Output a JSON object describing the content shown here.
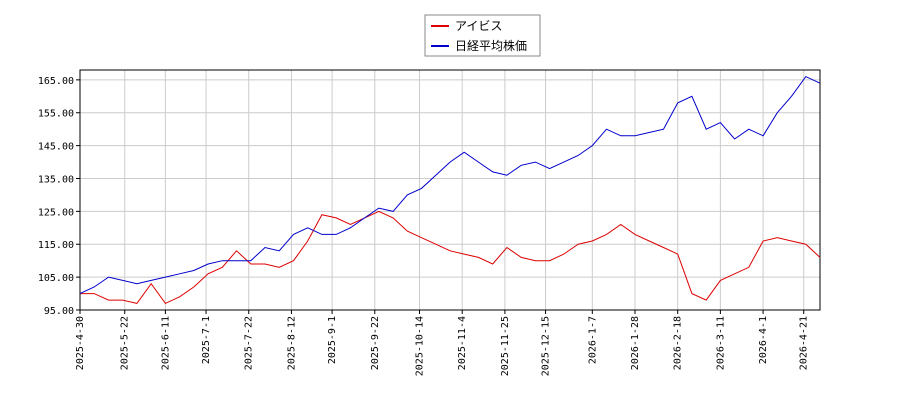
{
  "chart_data": {
    "type": "line",
    "x": [
      "2025-04-30",
      "2025-05-07",
      "2025-05-14",
      "2025-05-21",
      "2025-05-28",
      "2025-06-04",
      "2025-06-11",
      "2025-06-18",
      "2025-06-25",
      "2025-07-02",
      "2025-07-09",
      "2025-07-16",
      "2025-07-23",
      "2025-07-30",
      "2025-08-06",
      "2025-08-13",
      "2025-08-20",
      "2025-08-27",
      "2025-09-03",
      "2025-09-10",
      "2025-09-17",
      "2025-09-24",
      "2025-10-01",
      "2025-10-08",
      "2025-10-15",
      "2025-10-22",
      "2025-10-29",
      "2025-11-05",
      "2025-11-12",
      "2025-11-19",
      "2025-11-26",
      "2025-12-03",
      "2025-12-10",
      "2025-12-17",
      "2025-12-24",
      "2025-12-31",
      "2026-01-07",
      "2026-01-14",
      "2026-01-21",
      "2026-01-28",
      "2026-02-04",
      "2026-02-11",
      "2026-02-18",
      "2026-02-25",
      "2026-03-04",
      "2026-03-11",
      "2026-03-18",
      "2026-03-25",
      "2026-04-01",
      "2026-04-08",
      "2026-04-15",
      "2026-04-22",
      "2026-04-29"
    ],
    "series": [
      {
        "name": "アイビス",
        "color": "#dd0000",
        "values": [
          100,
          100,
          98,
          98,
          97,
          103,
          97,
          99,
          102,
          106,
          108,
          113,
          109,
          109,
          108,
          110,
          116,
          124,
          123,
          121,
          123,
          125,
          123,
          119,
          117,
          115,
          113,
          112,
          111,
          109,
          114,
          111,
          110,
          110,
          112,
          115,
          116,
          118,
          121,
          118,
          116,
          114,
          112,
          100,
          98,
          104,
          106,
          108,
          116,
          117,
          116,
          115,
          111
        ]
      },
      {
        "name": "日経平均株価",
        "color": "#0000cc",
        "values": [
          100,
          102,
          105,
          104,
          103,
          104,
          105,
          106,
          107,
          109,
          110,
          110,
          110,
          114,
          113,
          118,
          120,
          118,
          118,
          120,
          123,
          126,
          125,
          130,
          132,
          136,
          140,
          143,
          140,
          137,
          136,
          139,
          140,
          138,
          140,
          142,
          145,
          150,
          148,
          148,
          149,
          150,
          158,
          160,
          150,
          152,
          147,
          150,
          148,
          155,
          160,
          166,
          164
        ]
      }
    ],
    "xlim": [
      "2025-04-30",
      "2026-04-29"
    ],
    "xticks": [
      {
        "value": "2025-04-30",
        "label": "2025-4-30"
      },
      {
        "value": "2025-05-22",
        "label": "2025-5-22"
      },
      {
        "value": "2025-06-11",
        "label": "2025-6-11"
      },
      {
        "value": "2025-07-01",
        "label": "2025-7-1"
      },
      {
        "value": "2025-07-22",
        "label": "2025-7-22"
      },
      {
        "value": "2025-08-12",
        "label": "2025-8-12"
      },
      {
        "value": "2025-09-01",
        "label": "2025-9-1"
      },
      {
        "value": "2025-09-22",
        "label": "2025-9-22"
      },
      {
        "value": "2025-10-14",
        "label": "2025-10-14"
      },
      {
        "value": "2025-11-04",
        "label": "2025-11-4"
      },
      {
        "value": "2025-11-25",
        "label": "2025-11-25"
      },
      {
        "value": "2025-12-15",
        "label": "2025-12-15"
      },
      {
        "value": "2026-01-07",
        "label": "2026-1-7"
      },
      {
        "value": "2026-01-28",
        "label": "2026-1-28"
      },
      {
        "value": "2026-02-18",
        "label": "2026-2-18"
      },
      {
        "value": "2026-03-11",
        "label": "2026-3-11"
      },
      {
        "value": "2026-04-01",
        "label": "2026-4-1"
      },
      {
        "value": "2026-04-21",
        "label": "2026-4-21"
      }
    ],
    "ylim": [
      95,
      168
    ],
    "yticks": [
      {
        "value": 95,
        "label": "95.00"
      },
      {
        "value": 105,
        "label": "105.00"
      },
      {
        "value": 115,
        "label": "115.00"
      },
      {
        "value": 125,
        "label": "125.00"
      },
      {
        "value": 135,
        "label": "135.00"
      },
      {
        "value": 145,
        "label": "145.00"
      },
      {
        "value": 155,
        "label": "155.00"
      },
      {
        "value": 165,
        "label": "165.00"
      }
    ],
    "grid": true,
    "legend": "top"
  }
}
